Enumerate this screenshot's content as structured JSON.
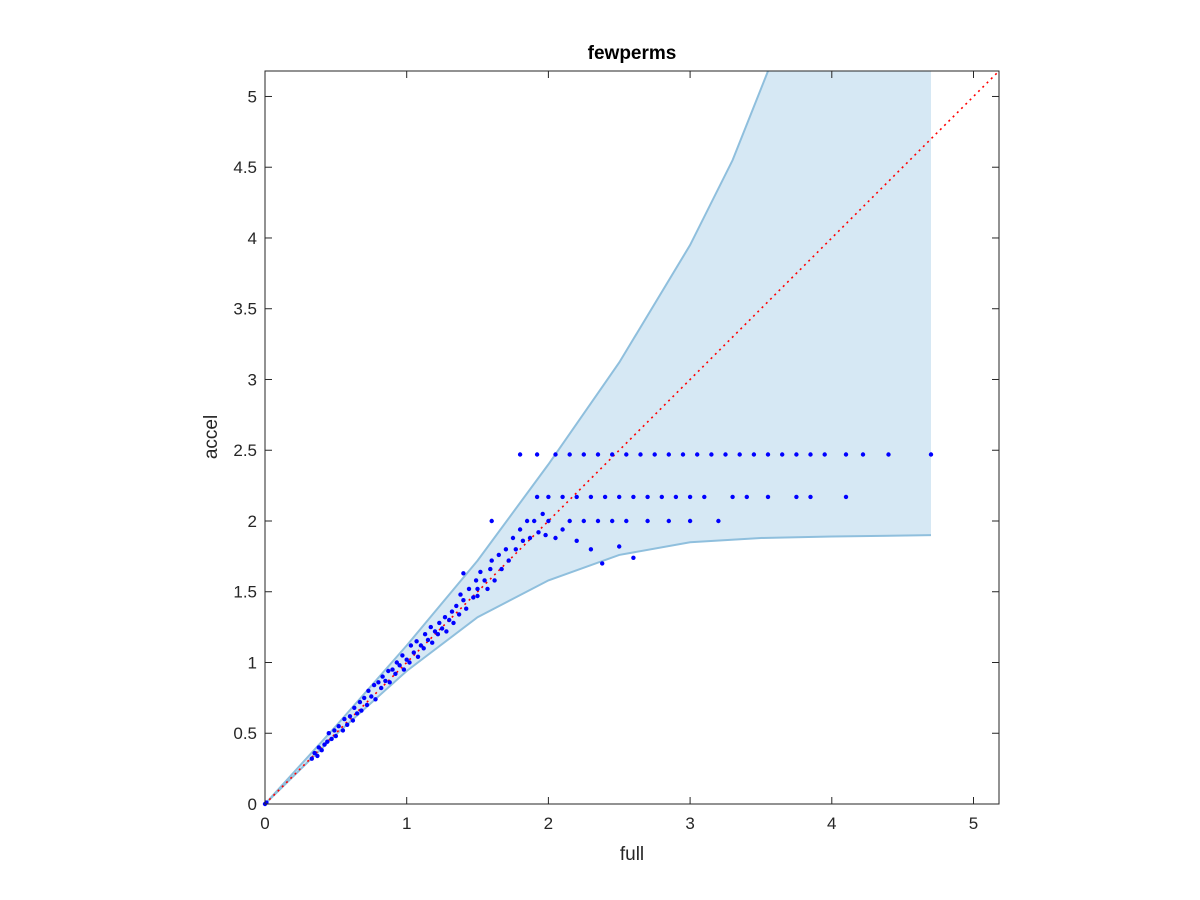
{
  "chart_data": {
    "type": "scatter",
    "title": "fewperms",
    "xlabel": "full",
    "ylabel": "accel",
    "xlim": [
      0,
      5.18
    ],
    "ylim": [
      0,
      5.18
    ],
    "x_ticks": [
      0,
      1,
      2,
      3,
      4,
      5
    ],
    "y_ticks": [
      0,
      0.5,
      1,
      1.5,
      2,
      2.5,
      3,
      3.5,
      4,
      4.5,
      5
    ],
    "x_tick_labels": [
      "0",
      "1",
      "2",
      "3",
      "4",
      "5"
    ],
    "y_tick_labels": [
      "0",
      "0.5",
      "1",
      "1.5",
      "2",
      "2.5",
      "3",
      "3.5",
      "4",
      "4.5",
      "5"
    ],
    "grid": false,
    "reference_line": {
      "style": "dotted",
      "points": [
        [
          0,
          0
        ],
        [
          5.18,
          5.18
        ]
      ]
    },
    "band": {
      "upper": [
        [
          0,
          0
        ],
        [
          0.5,
          0.55
        ],
        [
          1,
          1.12
        ],
        [
          1.5,
          1.72
        ],
        [
          2,
          2.4
        ],
        [
          2.5,
          3.12
        ],
        [
          3,
          3.95
        ],
        [
          3.3,
          4.55
        ],
        [
          3.55,
          5.18
        ]
      ],
      "lower": [
        [
          0,
          0
        ],
        [
          0.5,
          0.49
        ],
        [
          1,
          0.94
        ],
        [
          1.5,
          1.32
        ],
        [
          2,
          1.58
        ],
        [
          2.5,
          1.76
        ],
        [
          3,
          1.85
        ],
        [
          3.5,
          1.88
        ],
        [
          4,
          1.89
        ],
        [
          4.7,
          1.9
        ]
      ],
      "x_max": 4.7
    },
    "series": [
      {
        "points": [
          [
            0,
            0
          ],
          [
            0.01,
            0.01
          ],
          [
            0.33,
            0.32
          ],
          [
            0.35,
            0.36
          ],
          [
            0.37,
            0.34
          ],
          [
            0.38,
            0.4
          ],
          [
            0.4,
            0.38
          ],
          [
            0.42,
            0.42
          ],
          [
            0.44,
            0.44
          ],
          [
            0.45,
            0.5
          ],
          [
            0.47,
            0.46
          ],
          [
            0.49,
            0.52
          ],
          [
            0.5,
            0.48
          ],
          [
            0.52,
            0.55
          ],
          [
            0.55,
            0.52
          ],
          [
            0.56,
            0.6
          ],
          [
            0.58,
            0.56
          ],
          [
            0.6,
            0.62
          ],
          [
            0.62,
            0.59
          ],
          [
            0.63,
            0.68
          ],
          [
            0.65,
            0.64
          ],
          [
            0.67,
            0.72
          ],
          [
            0.68,
            0.66
          ],
          [
            0.7,
            0.75
          ],
          [
            0.72,
            0.7
          ],
          [
            0.73,
            0.8
          ],
          [
            0.75,
            0.76
          ],
          [
            0.77,
            0.84
          ],
          [
            0.78,
            0.74
          ],
          [
            0.8,
            0.86
          ],
          [
            0.82,
            0.82
          ],
          [
            0.83,
            0.9
          ],
          [
            0.85,
            0.87
          ],
          [
            0.87,
            0.94
          ],
          [
            0.88,
            0.86
          ],
          [
            0.9,
            0.95
          ],
          [
            0.92,
            0.92
          ],
          [
            0.93,
            1.0
          ],
          [
            0.95,
            0.98
          ],
          [
            0.97,
            1.05
          ],
          [
            0.98,
            0.95
          ],
          [
            1.0,
            1.02
          ],
          [
            1.02,
            1.0
          ],
          [
            1.03,
            1.12
          ],
          [
            1.05,
            1.07
          ],
          [
            1.07,
            1.15
          ],
          [
            1.08,
            1.04
          ],
          [
            1.1,
            1.12
          ],
          [
            1.12,
            1.1
          ],
          [
            1.13,
            1.2
          ],
          [
            1.15,
            1.16
          ],
          [
            1.17,
            1.25
          ],
          [
            1.18,
            1.14
          ],
          [
            1.2,
            1.22
          ],
          [
            1.22,
            1.2
          ],
          [
            1.23,
            1.28
          ],
          [
            1.25,
            1.24
          ],
          [
            1.27,
            1.32
          ],
          [
            1.28,
            1.22
          ],
          [
            1.3,
            1.3
          ],
          [
            1.32,
            1.36
          ],
          [
            1.33,
            1.28
          ],
          [
            1.35,
            1.4
          ],
          [
            1.37,
            1.34
          ],
          [
            1.38,
            1.48
          ],
          [
            1.4,
            1.44
          ],
          [
            1.42,
            1.38
          ],
          [
            1.44,
            1.52
          ],
          [
            1.47,
            1.46
          ],
          [
            1.49,
            1.58
          ],
          [
            1.5,
            1.52
          ],
          [
            1.52,
            1.64
          ],
          [
            1.55,
            1.58
          ],
          [
            1.57,
            1.52
          ],
          [
            1.59,
            1.66
          ],
          [
            1.6,
            1.72
          ],
          [
            1.62,
            1.58
          ],
          [
            1.65,
            1.76
          ],
          [
            1.67,
            1.66
          ],
          [
            1.7,
            1.8
          ],
          [
            1.72,
            1.72
          ],
          [
            1.75,
            1.88
          ],
          [
            1.77,
            1.8
          ],
          [
            1.8,
            1.94
          ],
          [
            1.82,
            1.86
          ],
          [
            1.85,
            2.0
          ],
          [
            1.87,
            1.88
          ],
          [
            1.9,
            2.0
          ],
          [
            1.93,
            1.92
          ],
          [
            1.96,
            2.05
          ],
          [
            1.98,
            1.9
          ],
          [
            2.0,
            2.0
          ],
          [
            2.05,
            1.88
          ],
          [
            2.1,
            1.94
          ],
          [
            2.15,
            2.0
          ],
          [
            2.2,
            1.86
          ],
          [
            2.25,
            2.0
          ],
          [
            2.3,
            1.8
          ],
          [
            2.35,
            2.0
          ],
          [
            2.38,
            1.7
          ],
          [
            2.5,
            1.82
          ],
          [
            2.6,
            1.74
          ],
          [
            1.4,
            1.63
          ],
          [
            1.6,
            2.0
          ],
          [
            1.5,
            1.47
          ],
          [
            1.8,
            2.47
          ],
          [
            1.92,
            2.47
          ],
          [
            2.05,
            2.47
          ],
          [
            2.15,
            2.47
          ],
          [
            2.25,
            2.47
          ],
          [
            2.35,
            2.47
          ],
          [
            2.45,
            2.47
          ],
          [
            2.55,
            2.47
          ],
          [
            2.65,
            2.47
          ],
          [
            2.75,
            2.47
          ],
          [
            2.85,
            2.47
          ],
          [
            2.95,
            2.47
          ],
          [
            3.05,
            2.47
          ],
          [
            3.15,
            2.47
          ],
          [
            3.25,
            2.47
          ],
          [
            3.35,
            2.47
          ],
          [
            3.45,
            2.47
          ],
          [
            3.55,
            2.47
          ],
          [
            3.65,
            2.47
          ],
          [
            3.75,
            2.47
          ],
          [
            3.85,
            2.47
          ],
          [
            3.95,
            2.47
          ],
          [
            4.1,
            2.47
          ],
          [
            4.22,
            2.47
          ],
          [
            4.4,
            2.47
          ],
          [
            4.7,
            2.47
          ],
          [
            1.92,
            2.17
          ],
          [
            2.0,
            2.17
          ],
          [
            2.1,
            2.17
          ],
          [
            2.2,
            2.17
          ],
          [
            2.3,
            2.17
          ],
          [
            2.4,
            2.17
          ],
          [
            2.5,
            2.17
          ],
          [
            2.6,
            2.17
          ],
          [
            2.7,
            2.17
          ],
          [
            2.8,
            2.17
          ],
          [
            2.9,
            2.17
          ],
          [
            3.0,
            2.17
          ],
          [
            3.1,
            2.17
          ],
          [
            3.3,
            2.17
          ],
          [
            3.4,
            2.17
          ],
          [
            3.55,
            2.17
          ],
          [
            3.75,
            2.17
          ],
          [
            3.85,
            2.17
          ],
          [
            4.1,
            2.17
          ],
          [
            2.45,
            2.0
          ],
          [
            2.55,
            2.0
          ],
          [
            2.7,
            2.0
          ],
          [
            2.85,
            2.0
          ],
          [
            3.0,
            2.0
          ],
          [
            3.2,
            2.0
          ]
        ]
      }
    ]
  },
  "colors": {
    "markers": "#0000ff",
    "band_fill": "#d6e8f4",
    "band_edge": "#8fbfdd",
    "reference_line": "#ff0000",
    "axes": "#262626"
  }
}
